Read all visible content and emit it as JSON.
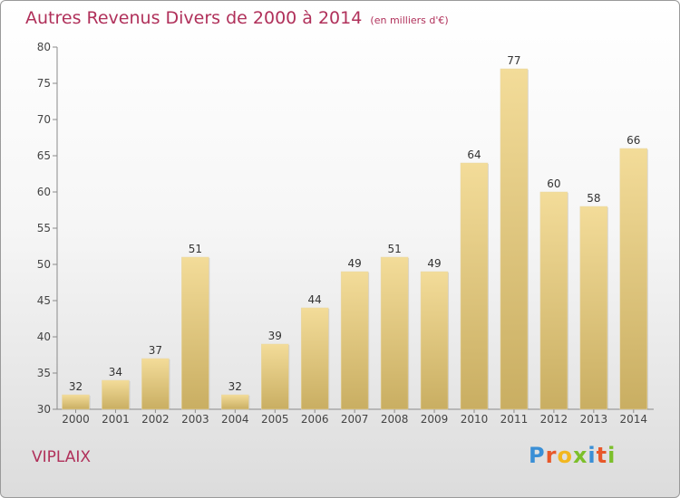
{
  "header": {
    "title": "Autres Revenus Divers de 2000 à 2014",
    "unit": "(en milliers d'€)"
  },
  "footer": {
    "town": "VIPLAIX",
    "logo_text": "Proxiti"
  },
  "colors": {
    "title": "#b0305a",
    "bar_light": "#f3dc99",
    "bar_dark": "#c9ae62"
  },
  "chart_data": {
    "type": "bar",
    "title": "Autres Revenus Divers de 2000 à 2014",
    "categories": [
      "2000",
      "2001",
      "2002",
      "2003",
      "2004",
      "2005",
      "2006",
      "2007",
      "2008",
      "2009",
      "2010",
      "2011",
      "2012",
      "2013",
      "2014"
    ],
    "values": [
      32,
      34,
      37,
      51,
      32,
      39,
      44,
      49,
      51,
      49,
      64,
      77,
      60,
      58,
      66
    ],
    "ylim": [
      30,
      80
    ],
    "yticks": [
      30,
      35,
      40,
      45,
      50,
      55,
      60,
      65,
      70,
      75,
      80
    ],
    "grid": false,
    "legend": "none"
  }
}
